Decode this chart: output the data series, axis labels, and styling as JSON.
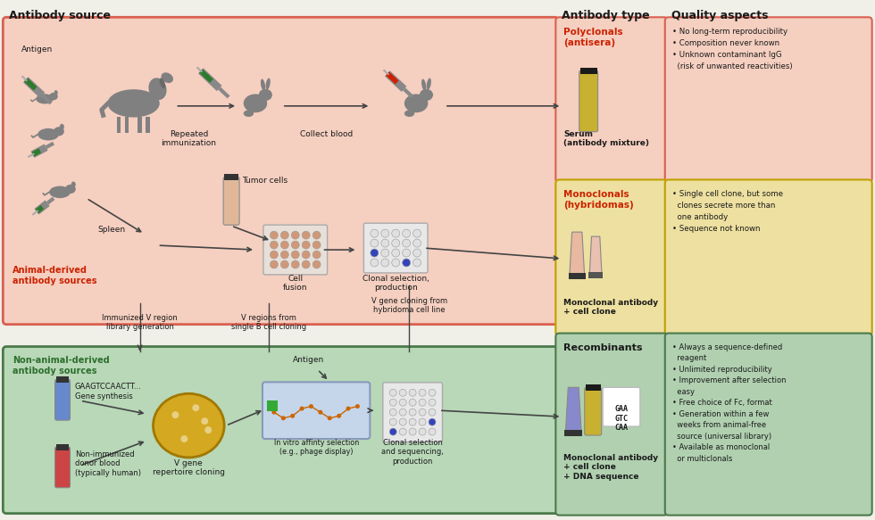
{
  "fig_width": 9.8,
  "fig_height": 5.83,
  "dpi": 100,
  "bg_color": "#f0efe8",
  "top_section_bg": "#f5cfc0",
  "top_section_border": "#d96050",
  "bottom_section_bg": "#b8d8b8",
  "bottom_section_border": "#4a7a4a",
  "quality_poly_bg": "#f5cfc0",
  "quality_poly_border": "#d96050",
  "quality_mono_bg": "#ede0a0",
  "quality_mono_border": "#c0a000",
  "quality_recomb_bg": "#b0d0b0",
  "quality_recomb_border": "#4a7a4a",
  "type_poly_bg": "#f5cfc0",
  "type_poly_border": "#d96050",
  "type_mono_bg": "#ede0a0",
  "type_mono_border": "#c0a000",
  "type_recomb_bg": "#b0d0b0",
  "type_recomb_border": "#4a7a4a",
  "red_text": "#cc2200",
  "green_text": "#2d6e2d",
  "dark_text": "#1a1a1a",
  "arrow_color": "#444444",
  "gray_animal": "#808080",
  "title_source": "Antibody source",
  "title_type": "Antibody type",
  "title_quality": "Quality aspects",
  "label_antigen": "Antigen",
  "label_repeated": "Repeated\nimmunization",
  "label_collect": "Collect blood",
  "label_tumor": "Tumor cells",
  "label_spleen": "Spleen",
  "label_cell_fusion": "Cell\nfusion",
  "label_clonal_top": "Clonal selection,\nproduction",
  "label_animal_derived": "Animal-derived\nantibody sources",
  "label_imm_v": "Immunized V region\nlibrary generation",
  "label_v_regions": "V regions from\nsingle B cell cloning",
  "label_v_gene_clone": "V gene cloning from\nhybridoma cell line",
  "label_non_animal": "Non-animal-derived\nantibody sources",
  "label_gene_synth": "GAAGTCCAACTT...\nGene synthesis",
  "label_non_imm": "Non-immunized\ndonor blood\n(typically human)",
  "label_v_gene_rep": "V gene\nrepertoire cloning",
  "label_antigen2": "Antigen",
  "label_in_vitro": "In vitro affinty selection\n(e.g., phage display)",
  "label_clonal_bot": "Clonal selection\nand sequencing,\nproduction",
  "poly_title": "Polyclonals\n(antisera)",
  "poly_sub": "Serum\n(antibody mixture)",
  "mono_title": "Monoclonals\n(hybridomas)",
  "mono_sub": "Monoclonal antibody\n+ cell clone",
  "recomb_title": "Recombinants",
  "recomb_sub": "Monoclonal antibody\n+ cell clone\n+ DNA sequence",
  "q_poly": "• No long-term reproducibility\n• Composition never known\n• Unknown contaminant IgG\n  (risk of unwanted reactivities)",
  "q_mono": "• Single cell clone, but some\n  clones secrete more than\n  one antibody\n• Sequence not known",
  "q_recomb": "• Always a sequence-defined\n  reagent\n• Unlimited reproducibility\n• Improvement after selection\n  easy\n• Free choice of Fc, format\n• Generation within a few\n  weeks from animal-free\n  source (universal library)\n• Available as monoclonal\n  or multiclonals",
  "dna_text": "GAA\nGTC\nCAA"
}
